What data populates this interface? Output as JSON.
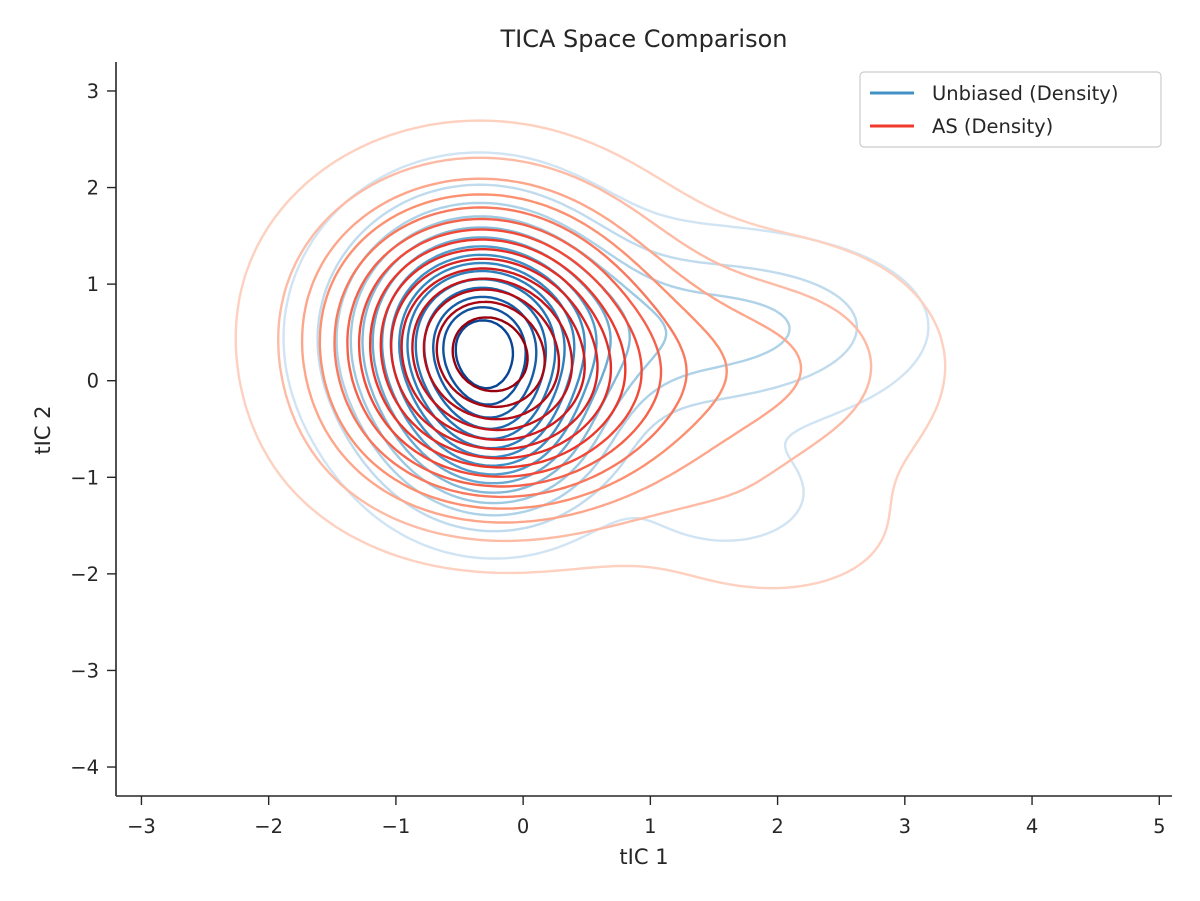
{
  "chart_data": {
    "type": "contour",
    "title": "TICA Space Comparison",
    "xlabel": "tIC 1",
    "ylabel": "tIC 2",
    "xlim": [
      -3.2,
      5.1
    ],
    "ylim": [
      -4.3,
      3.3
    ],
    "xticks": [
      -3,
      -2,
      -1,
      0,
      1,
      2,
      3,
      4,
      5
    ],
    "yticks": [
      -4,
      -3,
      -2,
      -1,
      0,
      1,
      2,
      3
    ],
    "xtick_labels": [
      "−3",
      "−2",
      "−1",
      "0",
      "1",
      "2",
      "3",
      "4",
      "5"
    ],
    "ytick_labels": [
      "−4",
      "−3",
      "−2",
      "−1",
      "0",
      "1",
      "2",
      "3"
    ],
    "grid": false,
    "legend_position": "top-right",
    "series": [
      {
        "name": "Unbiased (Density)",
        "color": "#4292c6",
        "colormap": "Blues",
        "levels": 15,
        "components": [
          {
            "weight": 1.0,
            "mean": [
              -0.35,
              0.45
            ],
            "sd": [
              0.6,
              0.75
            ]
          },
          {
            "weight": 0.38,
            "mean": [
              -0.2,
              -0.6
            ],
            "sd": [
              0.5,
              0.55
            ]
          },
          {
            "weight": 0.2,
            "mean": [
              1.3,
              0.5
            ],
            "sd": [
              0.9,
              0.6
            ]
          },
          {
            "weight": 0.09,
            "mean": [
              1.6,
              -1.2
            ],
            "sd": [
              0.45,
              0.35
            ]
          },
          {
            "weight": 0.05,
            "mean": [
              2.3,
              0.6
            ],
            "sd": [
              0.6,
              0.45
            ]
          }
        ]
      },
      {
        "name": "AS (Density)",
        "color": "#ef3b2c",
        "colormap": "Reds",
        "levels": 15,
        "components": [
          {
            "weight": 1.0,
            "mean": [
              -0.35,
              0.55
            ],
            "sd": [
              0.75,
              0.85
            ]
          },
          {
            "weight": 0.38,
            "mean": [
              -0.15,
              -0.5
            ],
            "sd": [
              0.75,
              0.65
            ]
          },
          {
            "weight": 0.22,
            "mean": [
              1.2,
              0.1
            ],
            "sd": [
              1.0,
              0.8
            ]
          },
          {
            "weight": 0.07,
            "mean": [
              2.0,
              -1.6
            ],
            "sd": [
              0.7,
              0.5
            ]
          },
          {
            "weight": 0.06,
            "mean": [
              2.4,
              0.2
            ],
            "sd": [
              0.6,
              0.7
            ]
          }
        ]
      }
    ]
  }
}
